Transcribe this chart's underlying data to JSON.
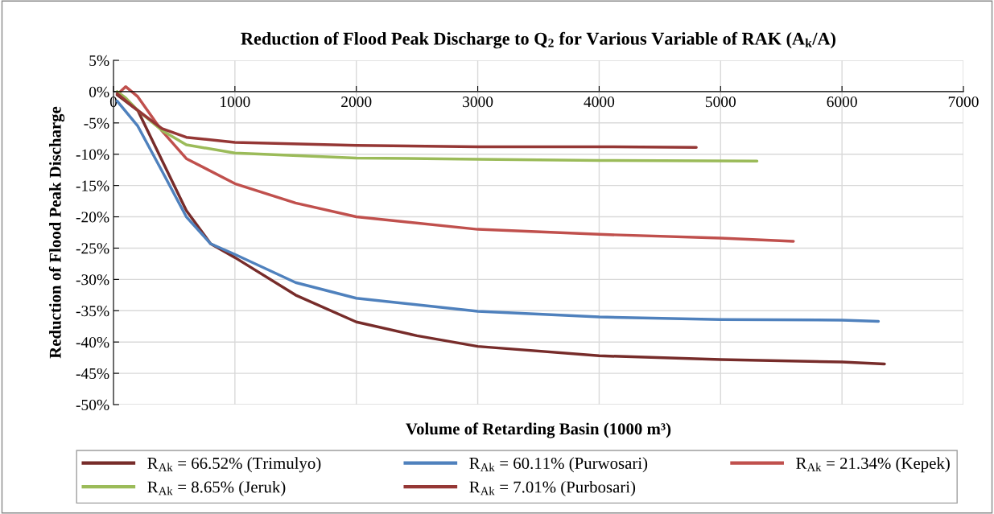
{
  "chart_data": {
    "type": "line",
    "title": "Reduction of Flood Peak Discharge to Q$_{2}$ for Various Variable of RAK (A$_{k}$/A)",
    "xlabel": "Volume of Retarding Basin (1000 m³)",
    "ylabel": "Reduction of Flood Peak Discharge",
    "xlim": [
      0,
      7000
    ],
    "xticks": [
      0,
      1000,
      2000,
      3000,
      4000,
      5000,
      6000,
      7000
    ],
    "ylim": [
      -50,
      5
    ],
    "yticks": [
      {
        "value": 5,
        "label": "5%"
      },
      {
        "value": 0,
        "label": "0%"
      },
      {
        "value": -5,
        "label": "-5%"
      },
      {
        "value": -10,
        "label": "-10%"
      },
      {
        "value": -15,
        "label": "-15%"
      },
      {
        "value": -20,
        "label": "-20%"
      },
      {
        "value": -25,
        "label": "-25%"
      },
      {
        "value": -30,
        "label": "-30%"
      },
      {
        "value": -35,
        "label": "-35%"
      },
      {
        "value": -40,
        "label": "-40%"
      },
      {
        "value": -45,
        "label": "-45%"
      },
      {
        "value": -50,
        "label": "-50%"
      }
    ],
    "grid": true,
    "legend": "bottom",
    "marker": "none",
    "line_style": "solid",
    "series": [
      {
        "name": "R$_{Ak}$ = 66.52% (Trimulyo)",
        "color": "#772c2a",
        "x": [
          30,
          200,
          400,
          600,
          800,
          1000,
          1500,
          2000,
          2500,
          3000,
          4000,
          5000,
          6000,
          6350
        ],
        "values": [
          -0.5,
          -3.0,
          -11,
          -19,
          -24.3,
          -26.5,
          -32.5,
          -36.8,
          -39,
          -40.7,
          -42.2,
          -42.8,
          -43.2,
          -43.5
        ]
      },
      {
        "name": "R$_{Ak}$ = 60.11% (Purwosari)",
        "color": "#4f81bd",
        "x": [
          30,
          200,
          400,
          600,
          800,
          1000,
          1500,
          2000,
          3000,
          4000,
          5000,
          6000,
          6300
        ],
        "values": [
          -1.5,
          -5.5,
          -12.7,
          -20,
          -24.3,
          -26,
          -30.5,
          -33,
          -35.1,
          -36,
          -36.4,
          -36.5,
          -36.7
        ]
      },
      {
        "name": "R$_{Ak}$ = 21.34% (Kepek)",
        "color": "#c0504d",
        "x": [
          40,
          100,
          200,
          400,
          600,
          1000,
          1500,
          2000,
          3000,
          4000,
          5000,
          5600
        ],
        "values": [
          -0.3,
          0.8,
          -0.8,
          -6.3,
          -10.7,
          -14.7,
          -17.8,
          -20,
          -22,
          -22.8,
          -23.4,
          -23.9
        ]
      },
      {
        "name": "R$_{Ak}$ = 8.65% (Jeruk)",
        "color": "#9bbb59",
        "x": [
          30,
          100,
          200,
          400,
          600,
          1000,
          2000,
          3000,
          4000,
          5300
        ],
        "values": [
          0,
          -1,
          -3.0,
          -6.2,
          -8.5,
          -9.8,
          -10.6,
          -10.8,
          -11,
          -11.1
        ]
      },
      {
        "name": "R$_{Ak}$ = 7.01% (Purbosari)",
        "color": "#953735",
        "x": [
          30,
          200,
          400,
          600,
          1000,
          2000,
          3000,
          4000,
          4800
        ],
        "values": [
          -0.3,
          -3,
          -5.9,
          -7.3,
          -8.1,
          -8.6,
          -8.8,
          -8.8,
          -8.9
        ]
      }
    ]
  }
}
